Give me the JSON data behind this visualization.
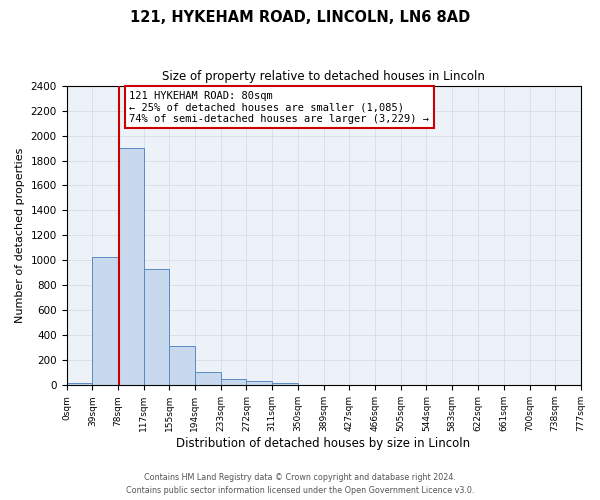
{
  "title": "121, HYKEHAM ROAD, LINCOLN, LN6 8AD",
  "subtitle": "Size of property relative to detached houses in Lincoln",
  "xlabel": "Distribution of detached houses by size in Lincoln",
  "ylabel": "Number of detached properties",
  "bin_edges": [
    0,
    39,
    78,
    117,
    155,
    194,
    233,
    272,
    311,
    350,
    389,
    427,
    466,
    505,
    544,
    583,
    622,
    661,
    700,
    738,
    777
  ],
  "bin_labels": [
    "0sqm",
    "39sqm",
    "78sqm",
    "117sqm",
    "155sqm",
    "194sqm",
    "233sqm",
    "272sqm",
    "311sqm",
    "350sqm",
    "389sqm",
    "427sqm",
    "466sqm",
    "505sqm",
    "544sqm",
    "583sqm",
    "622sqm",
    "661sqm",
    "700sqm",
    "738sqm",
    "777sqm"
  ],
  "bar_heights": [
    20,
    1025,
    1900,
    930,
    315,
    105,
    50,
    35,
    20,
    0,
    0,
    0,
    0,
    0,
    0,
    0,
    0,
    0,
    0,
    0
  ],
  "bar_color": "#c8d9ee",
  "bar_edge_color": "#5b8ac4",
  "vline_x": 80,
  "vline_color": "#cc0000",
  "ylim": [
    0,
    2400
  ],
  "yticks": [
    0,
    200,
    400,
    600,
    800,
    1000,
    1200,
    1400,
    1600,
    1800,
    2000,
    2200,
    2400
  ],
  "annotation_title": "121 HYKEHAM ROAD: 80sqm",
  "annotation_line1": "← 25% of detached houses are smaller (1,085)",
  "annotation_line2": "74% of semi-detached houses are larger (3,229) →",
  "annotation_box_color": "#cc0000",
  "grid_color": "#d0d8e8",
  "background_color": "#edf2f9",
  "footer_line1": "Contains HM Land Registry data © Crown copyright and database right 2024.",
  "footer_line2": "Contains public sector information licensed under the Open Government Licence v3.0."
}
